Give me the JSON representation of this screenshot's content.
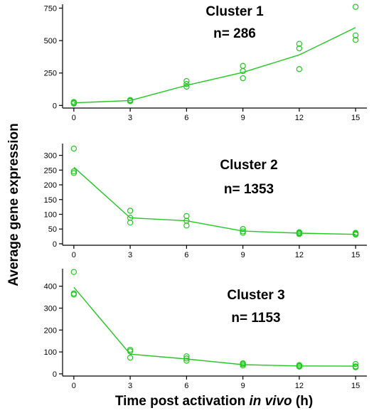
{
  "chart_data": [
    {
      "type": "scatter",
      "annotation_lines": [
        "Cluster 1",
        "n= 286"
      ],
      "x_ticks": [
        "0",
        "3",
        "6",
        "9",
        "12",
        "15"
      ],
      "y_ticks": [
        "0",
        "250",
        "500",
        "750"
      ],
      "xlim": [
        -0.6,
        15.6
      ],
      "ylim": [
        -20,
        780
      ],
      "line_color": "#22c722",
      "points": [
        [
          0,
          15
        ],
        [
          0,
          20
        ],
        [
          0,
          27
        ],
        [
          3,
          33
        ],
        [
          3,
          38
        ],
        [
          3,
          42
        ],
        [
          6,
          145
        ],
        [
          6,
          165
        ],
        [
          6,
          188
        ],
        [
          9,
          210
        ],
        [
          9,
          265
        ],
        [
          9,
          305
        ],
        [
          12,
          280
        ],
        [
          12,
          440
        ],
        [
          12,
          475
        ],
        [
          15,
          505
        ],
        [
          15,
          540
        ],
        [
          15,
          760
        ]
      ],
      "mean_line": [
        [
          0,
          20
        ],
        [
          3,
          38
        ],
        [
          6,
          155
        ],
        [
          9,
          255
        ],
        [
          12,
          390
        ],
        [
          15,
          600
        ]
      ]
    },
    {
      "type": "scatter",
      "annotation_lines": [
        "Cluster 2",
        "n= 1353"
      ],
      "x_ticks": [
        "0",
        "3",
        "6",
        "9",
        "12",
        "15"
      ],
      "y_ticks": [
        "0",
        "50",
        "100",
        "150",
        "200",
        "250",
        "300"
      ],
      "xlim": [
        -0.6,
        15.6
      ],
      "ylim": [
        -5,
        340
      ],
      "line_color": "#22c722",
      "points": [
        [
          0,
          240
        ],
        [
          0,
          246
        ],
        [
          0,
          323
        ],
        [
          3,
          72
        ],
        [
          3,
          88
        ],
        [
          3,
          112
        ],
        [
          6,
          62
        ],
        [
          6,
          78
        ],
        [
          6,
          94
        ],
        [
          9,
          37
        ],
        [
          9,
          42
        ],
        [
          9,
          50
        ],
        [
          12,
          33
        ],
        [
          12,
          36
        ],
        [
          12,
          39
        ],
        [
          15,
          31
        ],
        [
          15,
          34
        ],
        [
          15,
          37
        ]
      ],
      "mean_line": [
        [
          0,
          260
        ],
        [
          3,
          88
        ],
        [
          6,
          78
        ],
        [
          9,
          43
        ],
        [
          12,
          36
        ],
        [
          15,
          32
        ]
      ]
    },
    {
      "type": "scatter",
      "annotation_lines": [
        "Cluster 3",
        "n= 1153"
      ],
      "x_ticks": [
        "0",
        "3",
        "6",
        "9",
        "12",
        "15"
      ],
      "y_ticks": [
        "0",
        "100",
        "200",
        "300",
        "400"
      ],
      "xlim": [
        -0.6,
        15.6
      ],
      "ylim": [
        -10,
        480
      ],
      "line_color": "#22c722",
      "points": [
        [
          0,
          362
        ],
        [
          0,
          367
        ],
        [
          0,
          465
        ],
        [
          3,
          74
        ],
        [
          3,
          103
        ],
        [
          3,
          110
        ],
        [
          6,
          60
        ],
        [
          6,
          70
        ],
        [
          6,
          80
        ],
        [
          9,
          38
        ],
        [
          9,
          44
        ],
        [
          9,
          48
        ],
        [
          12,
          33
        ],
        [
          12,
          36
        ],
        [
          12,
          40
        ],
        [
          15,
          30
        ],
        [
          15,
          34
        ],
        [
          15,
          45
        ]
      ],
      "mean_line": [
        [
          0,
          395
        ],
        [
          3,
          90
        ],
        [
          6,
          68
        ],
        [
          9,
          42
        ],
        [
          12,
          36
        ],
        [
          15,
          35
        ]
      ]
    }
  ],
  "ylabel": "Average gene expression",
  "xlabel_parts": [
    "Time post activation ",
    "in vivo",
    " (h)"
  ]
}
